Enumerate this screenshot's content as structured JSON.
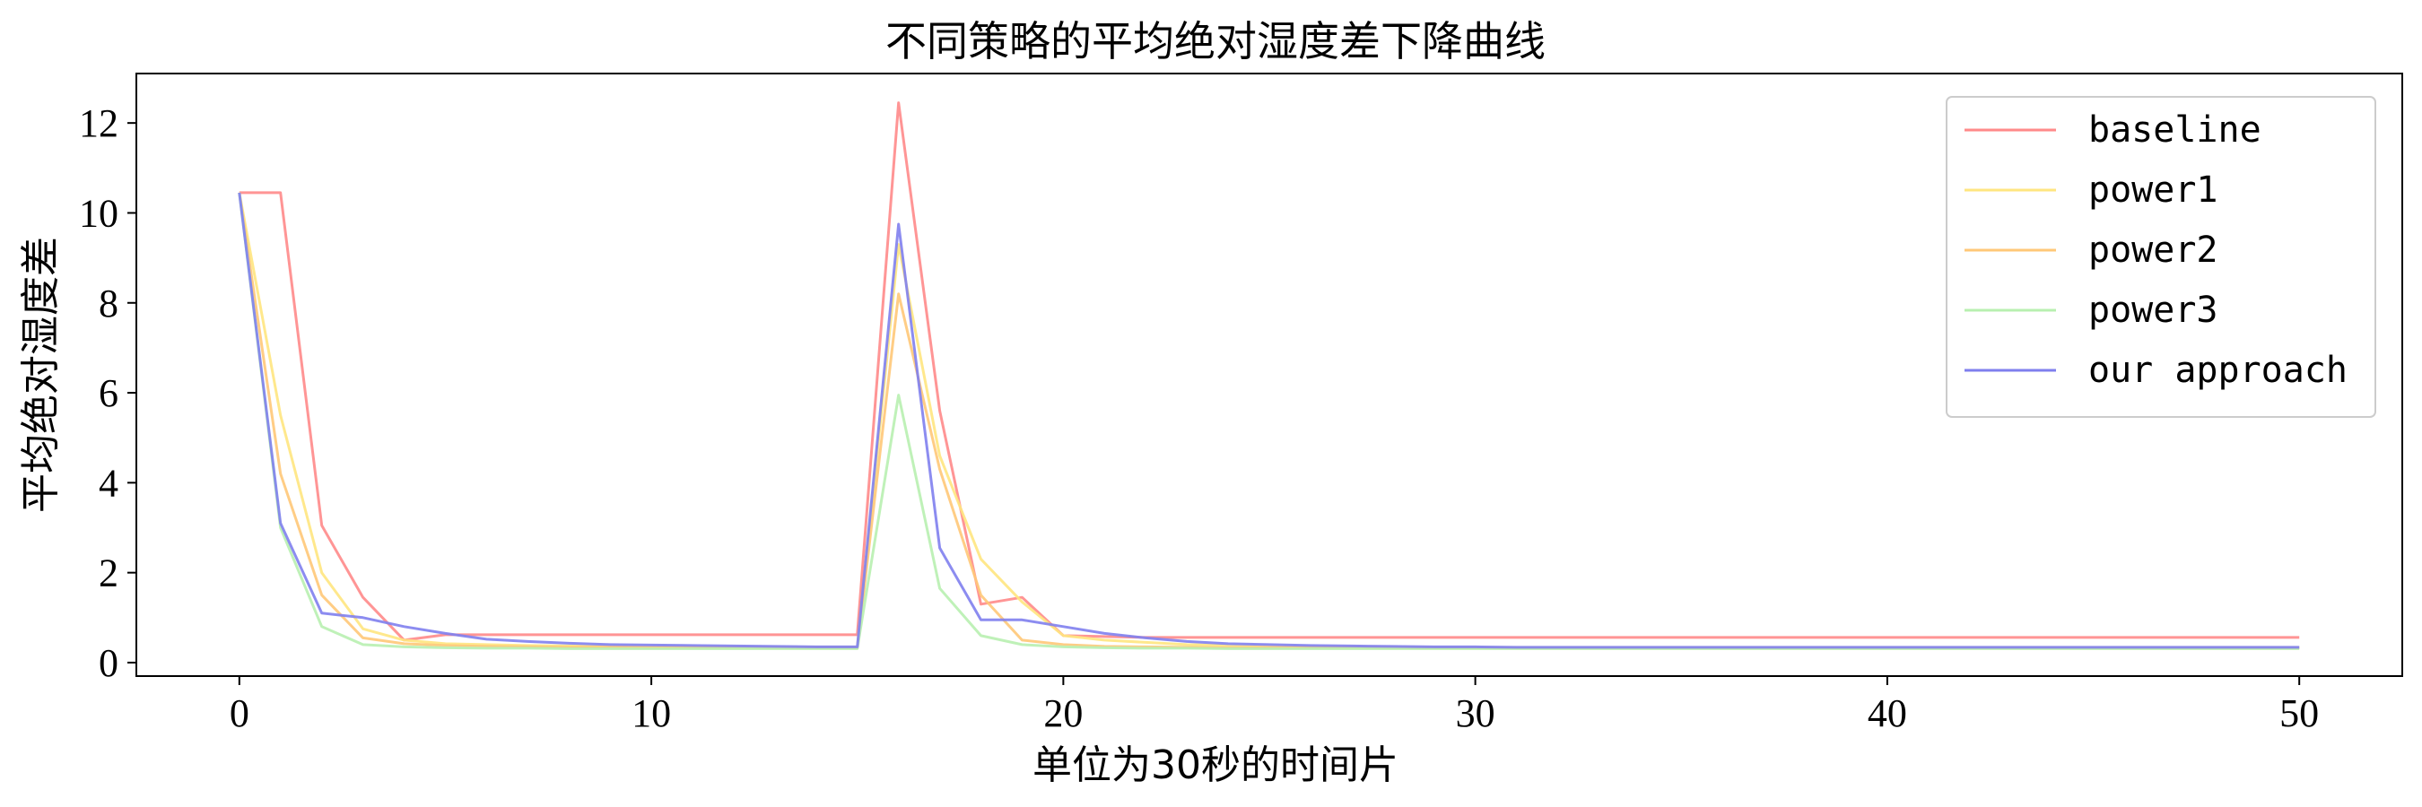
{
  "chart_data": {
    "type": "line",
    "title": "不同策略的平均绝对湿度差下降曲线",
    "xlabel": "单位为30秒的时间片",
    "ylabel": "平均绝对湿度差",
    "xlim": [
      -2.5,
      52.5
    ],
    "ylim": [
      -0.3,
      13.1
    ],
    "xticks": [
      0,
      10,
      20,
      30,
      40,
      50
    ],
    "yticks": [
      0,
      2,
      4,
      6,
      8,
      10,
      12
    ],
    "grid": false,
    "legend_position": "top-right",
    "x": [
      0,
      1,
      2,
      3,
      4,
      5,
      6,
      7,
      8,
      9,
      10,
      11,
      12,
      13,
      14,
      15,
      16,
      17,
      18,
      19,
      20,
      21,
      22,
      23,
      24,
      25,
      26,
      27,
      28,
      29,
      30,
      31,
      32,
      33,
      34,
      35,
      36,
      37,
      38,
      39,
      40,
      41,
      42,
      43,
      44,
      45,
      46,
      47,
      48,
      49,
      50
    ],
    "series": [
      {
        "name": "baseline",
        "color": "#ff8a8a",
        "values": [
          10.45,
          10.45,
          3.05,
          1.45,
          0.5,
          0.62,
          0.62,
          0.62,
          0.62,
          0.62,
          0.62,
          0.62,
          0.62,
          0.62,
          0.62,
          0.62,
          12.45,
          5.6,
          1.3,
          1.45,
          0.6,
          0.58,
          0.56,
          0.56,
          0.56,
          0.56,
          0.56,
          0.56,
          0.56,
          0.56,
          0.56,
          0.56,
          0.56,
          0.56,
          0.56,
          0.56,
          0.56,
          0.56,
          0.56,
          0.56,
          0.56,
          0.56,
          0.56,
          0.56,
          0.56,
          0.56,
          0.56,
          0.56,
          0.56,
          0.56,
          0.56
        ]
      },
      {
        "name": "power1",
        "color": "#ffe680",
        "values": [
          10.45,
          5.5,
          2.0,
          0.75,
          0.5,
          0.42,
          0.4,
          0.38,
          0.37,
          0.36,
          0.35,
          0.35,
          0.34,
          0.34,
          0.34,
          0.34,
          9.3,
          4.6,
          2.3,
          1.35,
          0.6,
          0.5,
          0.45,
          0.4,
          0.38,
          0.36,
          0.35,
          0.34,
          0.34,
          0.33,
          0.33,
          0.33,
          0.33,
          0.33,
          0.33,
          0.33,
          0.33,
          0.33,
          0.33,
          0.33,
          0.33,
          0.33,
          0.33,
          0.33,
          0.33,
          0.33,
          0.33,
          0.33,
          0.33,
          0.33,
          0.33
        ]
      },
      {
        "name": "power2",
        "color": "#ffc878",
        "values": [
          10.45,
          4.2,
          1.5,
          0.55,
          0.42,
          0.38,
          0.36,
          0.35,
          0.34,
          0.34,
          0.33,
          0.33,
          0.33,
          0.33,
          0.33,
          0.33,
          8.2,
          4.3,
          1.5,
          0.5,
          0.4,
          0.36,
          0.35,
          0.34,
          0.33,
          0.33,
          0.33,
          0.33,
          0.33,
          0.33,
          0.33,
          0.33,
          0.33,
          0.33,
          0.33,
          0.33,
          0.33,
          0.33,
          0.33,
          0.33,
          0.33,
          0.33,
          0.33,
          0.33,
          0.33,
          0.33,
          0.33,
          0.33,
          0.33,
          0.33,
          0.33
        ]
      },
      {
        "name": "power3",
        "color": "#b8f0b0",
        "values": [
          10.45,
          3.0,
          0.8,
          0.4,
          0.35,
          0.33,
          0.32,
          0.32,
          0.31,
          0.31,
          0.31,
          0.31,
          0.31,
          0.31,
          0.31,
          0.31,
          5.95,
          1.65,
          0.6,
          0.4,
          0.35,
          0.33,
          0.32,
          0.32,
          0.31,
          0.31,
          0.31,
          0.31,
          0.31,
          0.31,
          0.31,
          0.31,
          0.31,
          0.31,
          0.31,
          0.31,
          0.31,
          0.31,
          0.31,
          0.31,
          0.31,
          0.31,
          0.31,
          0.31,
          0.31,
          0.31,
          0.31,
          0.31,
          0.31,
          0.31,
          0.31
        ]
      },
      {
        "name": "our approach",
        "color": "#7f7fee",
        "values": [
          10.45,
          3.1,
          1.1,
          1.0,
          0.8,
          0.65,
          0.52,
          0.47,
          0.43,
          0.4,
          0.39,
          0.38,
          0.37,
          0.36,
          0.35,
          0.35,
          9.75,
          2.55,
          0.95,
          0.95,
          0.8,
          0.65,
          0.55,
          0.47,
          0.42,
          0.4,
          0.38,
          0.37,
          0.36,
          0.35,
          0.35,
          0.34,
          0.34,
          0.34,
          0.34,
          0.34,
          0.34,
          0.34,
          0.34,
          0.34,
          0.34,
          0.34,
          0.34,
          0.34,
          0.34,
          0.34,
          0.34,
          0.34,
          0.34,
          0.34,
          0.34
        ]
      }
    ]
  }
}
